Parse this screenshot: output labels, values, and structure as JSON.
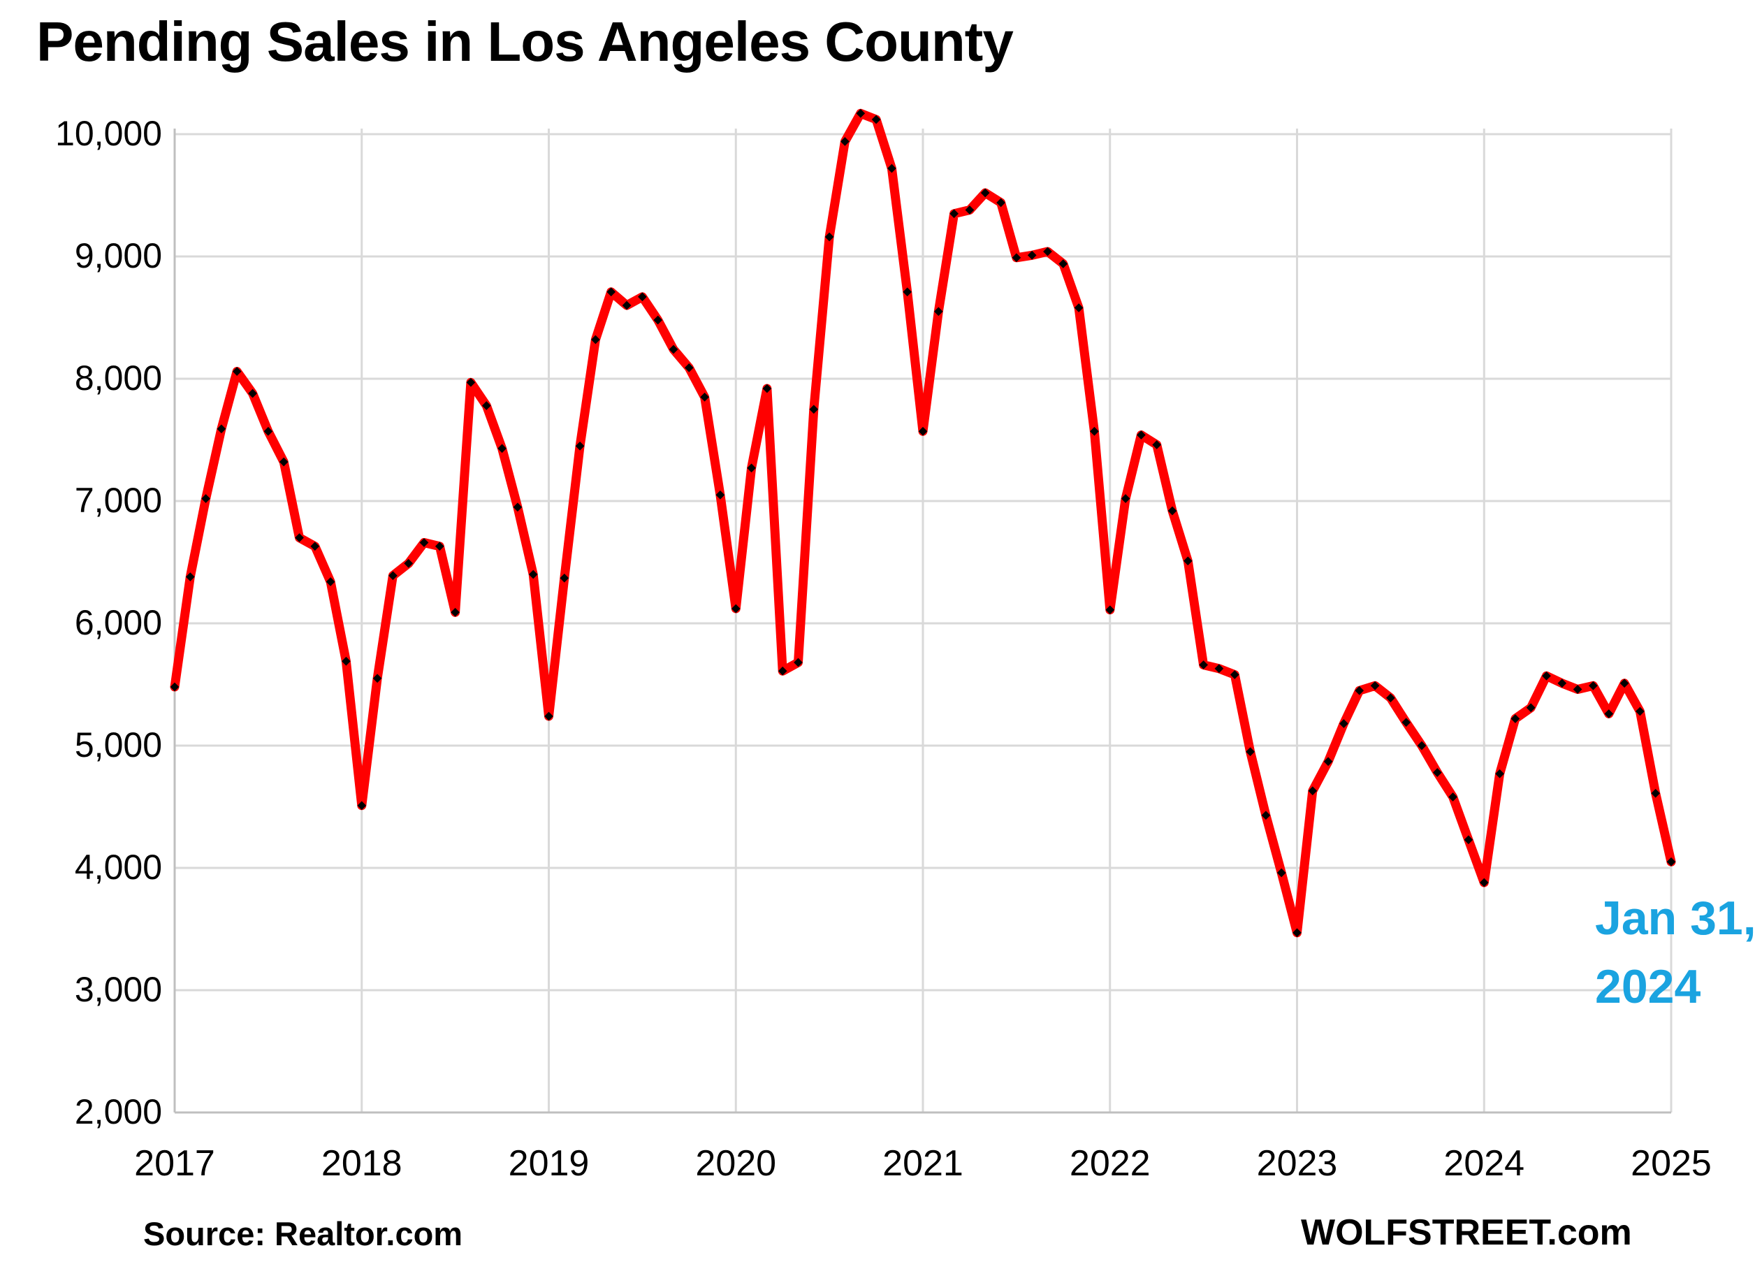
{
  "title": "Pending Sales in Los Angeles County",
  "source": "Source: Realtor.com",
  "brand": "WOLFSTREET.com",
  "annotation": {
    "line1": "Jan 31,",
    "line2": "2024",
    "color": "#1aa3e0"
  },
  "colors": {
    "line": "#ff0000",
    "markers": "#000000",
    "grid": "#d9d9d9",
    "axis_text": "#000000"
  },
  "chart_data": {
    "type": "line",
    "title": "Pending Sales in Los Angeles County",
    "xlabel": "",
    "ylabel": "",
    "xlim": [
      2017,
      2025
    ],
    "ylim": [
      2000,
      10000
    ],
    "x_ticks": [
      "2017",
      "2018",
      "2019",
      "2020",
      "2021",
      "2022",
      "2023",
      "2024",
      "2025"
    ],
    "y_ticks": [
      "2,000",
      "3,000",
      "4,000",
      "5,000",
      "6,000",
      "7,000",
      "8,000",
      "9,000",
      "10,000"
    ],
    "y_tick_values": [
      2000,
      3000,
      4000,
      5000,
      6000,
      7000,
      8000,
      9000,
      10000
    ],
    "grid": true,
    "legend": "none",
    "markers": true,
    "series": [
      {
        "x": [
          "2017-01",
          "2017-02",
          "2017-03",
          "2017-04",
          "2017-05",
          "2017-06",
          "2017-07",
          "2017-08",
          "2017-09",
          "2017-10",
          "2017-11",
          "2017-12",
          "2018-01",
          "2018-02",
          "2018-03",
          "2018-04",
          "2018-05",
          "2018-06",
          "2018-07",
          "2018-08",
          "2018-09",
          "2018-10",
          "2018-11",
          "2018-12",
          "2019-01",
          "2019-02",
          "2019-03",
          "2019-04",
          "2019-05",
          "2019-06",
          "2019-07",
          "2019-08",
          "2019-09",
          "2019-10",
          "2019-11",
          "2019-12",
          "2020-01",
          "2020-02",
          "2020-03",
          "2020-04",
          "2020-05",
          "2020-06",
          "2020-07",
          "2020-08",
          "2020-09",
          "2020-10",
          "2020-11",
          "2020-12",
          "2021-01",
          "2021-02",
          "2021-03",
          "2021-04",
          "2021-05",
          "2021-06",
          "2021-07",
          "2021-08",
          "2021-09",
          "2021-10",
          "2021-11",
          "2021-12",
          "2022-01",
          "2022-02",
          "2022-03",
          "2022-04",
          "2022-05",
          "2022-06",
          "2022-07",
          "2022-08",
          "2022-09",
          "2022-10",
          "2022-11",
          "2022-12",
          "2023-01",
          "2023-02",
          "2023-03",
          "2023-04",
          "2023-05",
          "2023-06",
          "2023-07",
          "2023-08",
          "2023-09",
          "2023-10",
          "2023-11",
          "2023-12",
          "2024-01",
          "2024-02",
          "2024-03",
          "2024-04",
          "2024-05",
          "2024-06",
          "2024-07",
          "2024-08",
          "2024-09",
          "2024-10",
          "2024-11",
          "2024-12",
          "2025-01"
        ],
        "values": [
          5480,
          6380,
          7020,
          7590,
          8060,
          7880,
          7570,
          7320,
          6700,
          6630,
          6340,
          5690,
          4510,
          5550,
          6390,
          6490,
          6660,
          6630,
          6090,
          7970,
          7780,
          7430,
          6950,
          6400,
          5240,
          6370,
          7450,
          8320,
          8710,
          8600,
          8670,
          8480,
          8240,
          8090,
          7850,
          7050,
          6120,
          7270,
          7920,
          5610,
          5680,
          7750,
          9160,
          9940,
          10170,
          10120,
          9720,
          8710,
          7570,
          8550,
          9350,
          9380,
          9520,
          9440,
          8990,
          9010,
          9040,
          8940,
          8580,
          7570,
          6110,
          7020,
          7540,
          7460,
          6920,
          6510,
          5660,
          5630,
          5580,
          4950,
          4430,
          3960,
          3470,
          4630,
          4870,
          5180,
          5450,
          5490,
          5390,
          5190,
          5000,
          4780,
          4580,
          4230,
          3880,
          4770,
          5220,
          5310,
          5570,
          5510,
          5460,
          5490,
          5260,
          5510,
          5280,
          4610,
          4050
        ]
      }
    ]
  }
}
